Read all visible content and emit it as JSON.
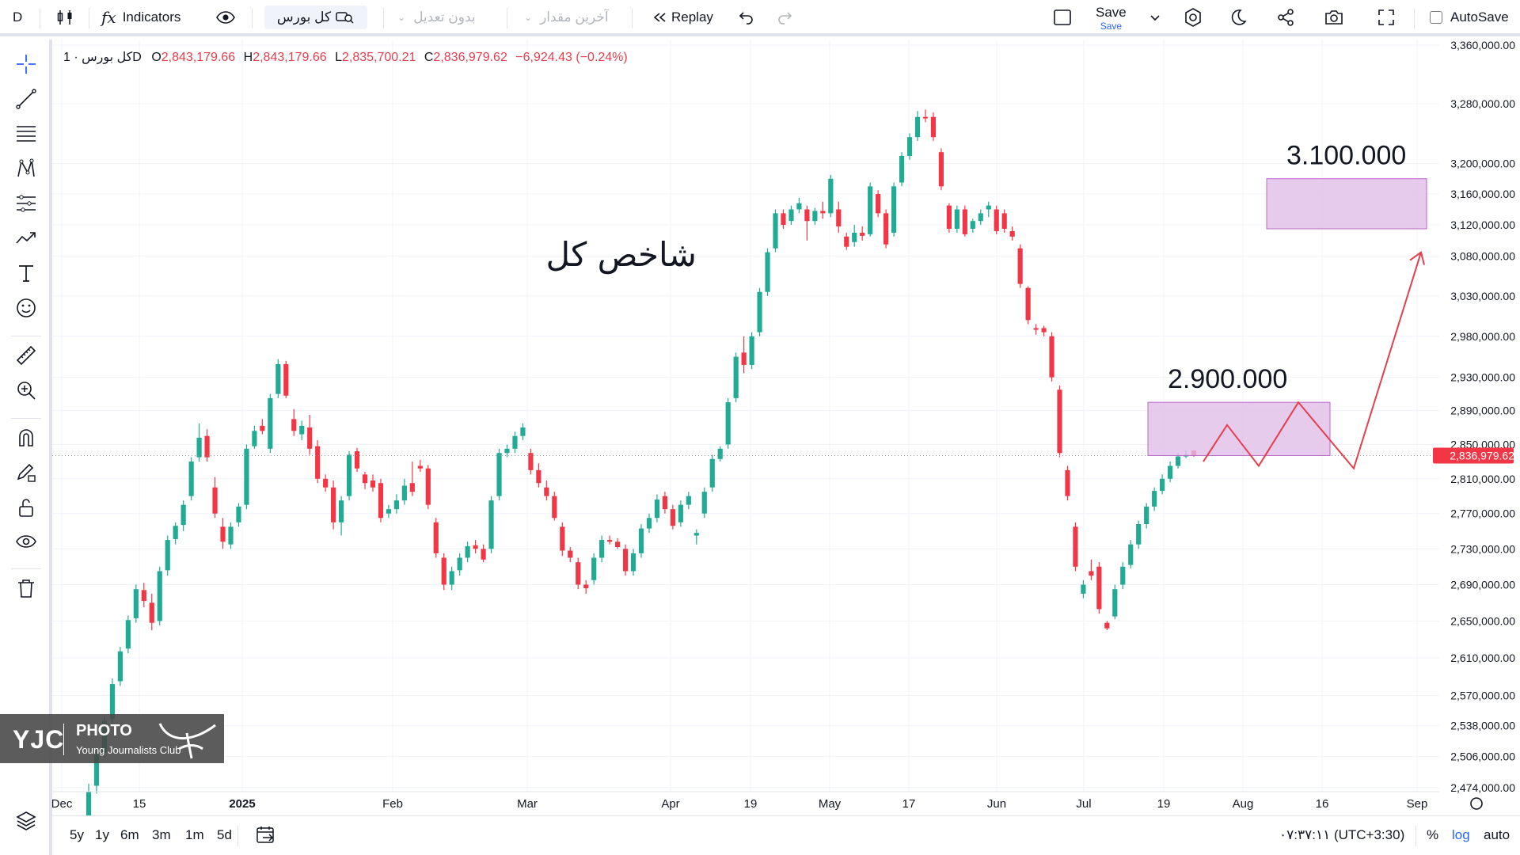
{
  "toolbar": {
    "interval": "D",
    "indicators_label": "Indicators",
    "symbol": "کل بورس",
    "adjust_label": "بدون تعدیل",
    "price_label": "آخرین مقدار",
    "replay_label": "Replay",
    "save_label": "Save",
    "save_sub": "Save",
    "autosave_label": "AutoSave"
  },
  "legend": {
    "symbol": "کل بورس",
    "interval": "1D",
    "o_key": "O",
    "o_val": "2,843,179.66",
    "h_key": "H",
    "h_val": "2,843,179.66",
    "l_key": "L",
    "l_val": "2,835,700.21",
    "c_key": "C",
    "c_val": "2,836,979.62",
    "change": "−6,924.43 (−0.24%)"
  },
  "bottom": {
    "ranges": [
      "5y",
      "1y",
      "6m",
      "3m",
      "1m",
      "5d"
    ],
    "time": "۰۷:۳۷:۱۱ (UTC+3:30)",
    "percent": "%",
    "log": "log",
    "auto": "auto"
  },
  "watermark": {
    "yjc": "YJC",
    "photo": "PHOTO",
    "club": "Young Journalists Club"
  },
  "colors": {
    "up": "#22ab94",
    "down": "#f23645",
    "zone": "#e1bee7",
    "zone_border": "#ba68c8",
    "arrow": "#e53e4d",
    "last_price": "#f23645"
  },
  "chart_data": {
    "type": "candlestick",
    "y_axis": {
      "scale": "log",
      "range": [
        2474000,
        3360000
      ],
      "ticks": [
        "3,360,000.00",
        "3,280,000.00",
        "3,200,000.00",
        "3,160,000.00",
        "3,120,000.00",
        "3,080,000.00",
        "3,030,000.00",
        "2,980,000.00",
        "2,930,000.00",
        "2,890,000.00",
        "2,850,000.00",
        "2,810,000.00",
        "2,770,000.00",
        "2,730,000.00",
        "2,690,000.00",
        "2,650,000.00",
        "2,610,000.00",
        "2,570,000.00",
        "2,538,000.00",
        "2,506,000.00",
        "2,474,000.00"
      ]
    },
    "x_axis": {
      "labels": [
        "Dec",
        "15",
        "2025",
        "Feb",
        "Mar",
        "Apr",
        "19",
        "May",
        "17",
        "Jun",
        "Jul",
        "19",
        "Aug",
        "16",
        "Sep"
      ]
    },
    "last_price": {
      "value": 2836979.62,
      "label": "2,836,979.62"
    },
    "candles": [
      [
        2440000,
        2478000,
        2430000,
        2470000
      ],
      [
        2476000,
        2515000,
        2468000,
        2508000
      ],
      [
        2510000,
        2548000,
        2505000,
        2543000
      ],
      [
        2545000,
        2588000,
        2540000,
        2582000
      ],
      [
        2585000,
        2622000,
        2580000,
        2617000
      ],
      [
        2620000,
        2656000,
        2615000,
        2651000
      ],
      [
        2653000,
        2690000,
        2648000,
        2685000
      ],
      [
        2684000,
        2692000,
        2665000,
        2672000
      ],
      [
        2670000,
        2680000,
        2640000,
        2648000
      ],
      [
        2650000,
        2710000,
        2645000,
        2705000
      ],
      [
        2706000,
        2745000,
        2700000,
        2740000
      ],
      [
        2741000,
        2760000,
        2735000,
        2756000
      ],
      [
        2757000,
        2785000,
        2750000,
        2780000
      ],
      [
        2790000,
        2835000,
        2785000,
        2830000
      ],
      [
        2835000,
        2875000,
        2830000,
        2858000
      ],
      [
        2860000,
        2868000,
        2830000,
        2835000
      ],
      [
        2800000,
        2812000,
        2765000,
        2770000
      ],
      [
        2755000,
        2765000,
        2730000,
        2738000
      ],
      [
        2735000,
        2760000,
        2730000,
        2755000
      ],
      [
        2760000,
        2782000,
        2755000,
        2778000
      ],
      [
        2780000,
        2850000,
        2775000,
        2845000
      ],
      [
        2848000,
        2872000,
        2845000,
        2866000
      ],
      [
        2872000,
        2880000,
        2862000,
        2866000
      ],
      [
        2845000,
        2910000,
        2840000,
        2905000
      ],
      [
        2910000,
        2952000,
        2905000,
        2946000
      ],
      [
        2946000,
        2950000,
        2905000,
        2908000
      ],
      [
        2880000,
        2892000,
        2860000,
        2866000
      ],
      [
        2862000,
        2878000,
        2855000,
        2872000
      ],
      [
        2870000,
        2885000,
        2838000,
        2845000
      ],
      [
        2848000,
        2855000,
        2805000,
        2810000
      ],
      [
        2810000,
        2815000,
        2795000,
        2800000
      ],
      [
        2800000,
        2808000,
        2752000,
        2760000
      ],
      [
        2760000,
        2790000,
        2745000,
        2785000
      ],
      [
        2790000,
        2842000,
        2785000,
        2838000
      ],
      [
        2842000,
        2846000,
        2818000,
        2822000
      ],
      [
        2815000,
        2818000,
        2798000,
        2805000
      ],
      [
        2808000,
        2815000,
        2795000,
        2800000
      ],
      [
        2805000,
        2810000,
        2760000,
        2765000
      ],
      [
        2770000,
        2780000,
        2765000,
        2775000
      ],
      [
        2775000,
        2792000,
        2770000,
        2785000
      ],
      [
        2785000,
        2810000,
        2780000,
        2802000
      ],
      [
        2805000,
        2830000,
        2790000,
        2795000
      ],
      [
        2825000,
        2832000,
        2818000,
        2822000
      ],
      [
        2822000,
        2826000,
        2775000,
        2780000
      ],
      [
        2760000,
        2765000,
        2720000,
        2725000
      ],
      [
        2720000,
        2725000,
        2684000,
        2690000
      ],
      [
        2690000,
        2710000,
        2684000,
        2705000
      ],
      [
        2706000,
        2725000,
        2700000,
        2720000
      ],
      [
        2720000,
        2738000,
        2715000,
        2733000
      ],
      [
        2734000,
        2740000,
        2725000,
        2730000
      ],
      [
        2730000,
        2735000,
        2715000,
        2718000
      ],
      [
        2730000,
        2790000,
        2725000,
        2785000
      ],
      [
        2790000,
        2845000,
        2785000,
        2840000
      ],
      [
        2840000,
        2850000,
        2835000,
        2845000
      ],
      [
        2845000,
        2865000,
        2840000,
        2860000
      ],
      [
        2860000,
        2875000,
        2855000,
        2870000
      ],
      [
        2840000,
        2845000,
        2815000,
        2820000
      ],
      [
        2820000,
        2828000,
        2800000,
        2805000
      ],
      [
        2800000,
        2808000,
        2785000,
        2790000
      ],
      [
        2790000,
        2795000,
        2762000,
        2765000
      ],
      [
        2755000,
        2760000,
        2722000,
        2728000
      ],
      [
        2728000,
        2732000,
        2715000,
        2720000
      ],
      [
        2715000,
        2720000,
        2685000,
        2690000
      ],
      [
        2690000,
        2695000,
        2680000,
        2686000
      ],
      [
        2695000,
        2725000,
        2690000,
        2720000
      ],
      [
        2720000,
        2745000,
        2715000,
        2740000
      ],
      [
        2740000,
        2745000,
        2735000,
        2738000
      ],
      [
        2738000,
        2742000,
        2730000,
        2732000
      ],
      [
        2730000,
        2735000,
        2700000,
        2705000
      ],
      [
        2705000,
        2730000,
        2700000,
        2725000
      ],
      [
        2725000,
        2758000,
        2720000,
        2753000
      ],
      [
        2753000,
        2770000,
        2748000,
        2765000
      ],
      [
        2765000,
        2792000,
        2760000,
        2786000
      ],
      [
        2790000,
        2795000,
        2770000,
        2775000
      ],
      [
        2775000,
        2780000,
        2752000,
        2756000
      ],
      [
        2760000,
        2785000,
        2755000,
        2780000
      ],
      [
        2780000,
        2795000,
        2775000,
        2790000
      ],
      [
        2745000,
        2752000,
        2735000,
        2748000
      ],
      [
        2770000,
        2800000,
        2765000,
        2795000
      ],
      [
        2800000,
        2838000,
        2795000,
        2833000
      ],
      [
        2833000,
        2848000,
        2830000,
        2845000
      ],
      [
        2850000,
        2905000,
        2845000,
        2900000
      ],
      [
        2905000,
        2960000,
        2900000,
        2955000
      ],
      [
        2960000,
        2980000,
        2935000,
        2945000
      ],
      [
        2945000,
        2985000,
        2940000,
        2980000
      ],
      [
        2985000,
        3040000,
        2980000,
        3035000
      ],
      [
        3035000,
        3090000,
        3030000,
        3085000
      ],
      [
        3090000,
        3140000,
        3085000,
        3135000
      ],
      [
        3135000,
        3140000,
        3115000,
        3120000
      ],
      [
        3125000,
        3145000,
        3120000,
        3140000
      ],
      [
        3140000,
        3155000,
        3135000,
        3148000
      ],
      [
        3140000,
        3145000,
        3100000,
        3125000
      ],
      [
        3125000,
        3142000,
        3120000,
        3138000
      ],
      [
        3138000,
        3150000,
        3128000,
        3135000
      ],
      [
        3135000,
        3185000,
        3130000,
        3180000
      ],
      [
        3140000,
        3150000,
        3110000,
        3118000
      ],
      [
        3105000,
        3110000,
        3088000,
        3092000
      ],
      [
        3098000,
        3120000,
        3092000,
        3110000
      ],
      [
        3110000,
        3118000,
        3100000,
        3106000
      ],
      [
        3108000,
        3175000,
        3105000,
        3170000
      ],
      [
        3160000,
        3165000,
        3130000,
        3135000
      ],
      [
        3135000,
        3140000,
        3090000,
        3095000
      ],
      [
        3110000,
        3175000,
        3105000,
        3170000
      ],
      [
        3175000,
        3215000,
        3170000,
        3210000
      ],
      [
        3210000,
        3240000,
        3205000,
        3235000
      ],
      [
        3235000,
        3270000,
        3230000,
        3262000
      ],
      [
        3262000,
        3272000,
        3255000,
        3260000
      ],
      [
        3262000,
        3268000,
        3230000,
        3235000
      ],
      [
        3215000,
        3220000,
        3165000,
        3170000
      ],
      [
        3145000,
        3148000,
        3110000,
        3115000
      ],
      [
        3115000,
        3145000,
        3110000,
        3140000
      ],
      [
        3140000,
        3145000,
        3105000,
        3108000
      ],
      [
        3115000,
        3128000,
        3110000,
        3125000
      ],
      [
        3125000,
        3140000,
        3120000,
        3135000
      ],
      [
        3140000,
        3150000,
        3130000,
        3145000
      ],
      [
        3140000,
        3145000,
        3108000,
        3112000
      ],
      [
        3135000,
        3140000,
        3110000,
        3115000
      ],
      [
        3112000,
        3118000,
        3100000,
        3105000
      ],
      [
        3090000,
        3095000,
        3040000,
        3045000
      ],
      [
        3040000,
        3042000,
        2995000,
        3000000
      ],
      [
        2990000,
        2995000,
        2982000,
        2988000
      ],
      [
        2990000,
        2993000,
        2980000,
        2985000
      ],
      [
        2980000,
        2985000,
        2925000,
        2930000
      ],
      [
        2915000,
        2920000,
        2835000,
        2840000
      ],
      [
        2820000,
        2825000,
        2785000,
        2790000
      ],
      [
        2755000,
        2760000,
        2705000,
        2710000
      ],
      [
        2680000,
        2695000,
        2675000,
        2690000
      ],
      [
        2705000,
        2718000,
        2695000,
        2700000
      ],
      [
        2710000,
        2715000,
        2658000,
        2663000
      ],
      [
        2648000,
        2650000,
        2640000,
        2642000
      ],
      [
        2655000,
        2690000,
        2652000,
        2685000
      ],
      [
        2690000,
        2715000,
        2685000,
        2710000
      ],
      [
        2712000,
        2740000,
        2708000,
        2735000
      ],
      [
        2735000,
        2762000,
        2730000,
        2758000
      ],
      [
        2758000,
        2782000,
        2753000,
        2778000
      ],
      [
        2778000,
        2800000,
        2773000,
        2796000
      ],
      [
        2796000,
        2815000,
        2792000,
        2810000
      ],
      [
        2810000,
        2830000,
        2806000,
        2825000
      ],
      [
        2825000,
        2840000,
        2822000,
        2836000
      ],
      [
        2836000,
        2843000,
        2834000,
        2838000
      ],
      [
        2843000,
        2843000,
        2835700,
        2836980
      ]
    ],
    "annotations": {
      "title_text": "شاخص کل",
      "zones": [
        {
          "label": "2.900.000",
          "top": 2900000,
          "bottom": 2837000
        },
        {
          "label": "3.100.000",
          "top": 3180000,
          "bottom": 3115000
        }
      ],
      "projection_path": [
        2830000,
        2873000,
        2825000,
        2900000,
        2822000,
        3085000
      ]
    }
  }
}
